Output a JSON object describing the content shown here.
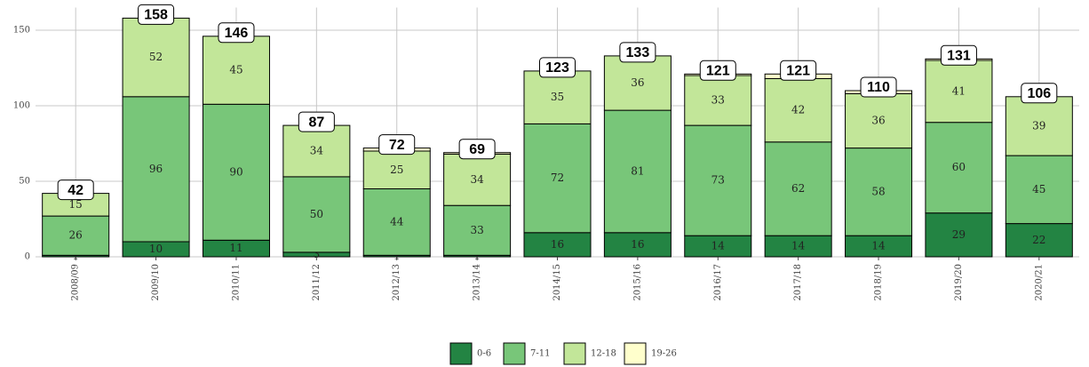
{
  "chart_data": {
    "type": "stacked-bar",
    "categories": [
      "2008/09",
      "2009/10",
      "2010/11",
      "2011/12",
      "2012/13",
      "2013/14",
      "2014/15",
      "2015/16",
      "2016/17",
      "2017/18",
      "2018/19",
      "2019/20",
      "2020/21"
    ],
    "series": [
      {
        "name": "0-6",
        "color": "#238443",
        "values": [
          1,
          10,
          11,
          3,
          1,
          1,
          16,
          16,
          14,
          14,
          14,
          29,
          22
        ]
      },
      {
        "name": "7-11",
        "color": "#78c679",
        "values": [
          26,
          96,
          90,
          50,
          44,
          33,
          72,
          81,
          73,
          62,
          58,
          60,
          45
        ]
      },
      {
        "name": "12-18",
        "color": "#c2e699",
        "values": [
          15,
          52,
          45,
          34,
          25,
          34,
          35,
          36,
          33,
          42,
          36,
          41,
          39
        ]
      },
      {
        "name": "19-26",
        "color": "#ffffcc",
        "values": [
          0,
          0,
          0,
          0,
          2,
          1,
          0,
          0,
          1,
          3,
          2,
          1,
          0
        ]
      }
    ],
    "totals": [
      42,
      158,
      146,
      87,
      72,
      69,
      123,
      133,
      121,
      121,
      110,
      131,
      106
    ],
    "ylim": [
      0,
      165
    ],
    "yticks": [
      0,
      50,
      100,
      150
    ],
    "grid": true,
    "legend": "bottom"
  }
}
